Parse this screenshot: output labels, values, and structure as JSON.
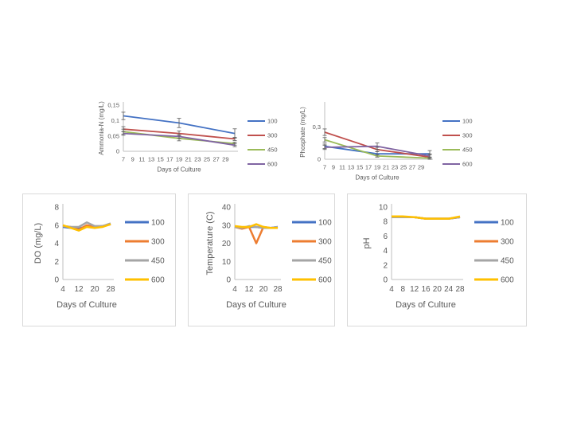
{
  "colors": {
    "100": "#4472C4",
    "300": "#C0504D",
    "450": "#9BBB59",
    "600": "#8064A2"
  },
  "colors_bottom": {
    "100": "#4472C4",
    "300": "#ED7D31",
    "450": "#A5A5A5",
    "600": "#FFC000"
  },
  "chart_data": [
    {
      "type": "line",
      "ylabel": "Ammonia-N (mg/L)",
      "xlabel": "Days of Culture",
      "x_ticks": [
        "7",
        "9",
        "11",
        "13",
        "15",
        "17",
        "19",
        "21",
        "23",
        "25",
        "27",
        "29"
      ],
      "y_ticks": [
        "0",
        "0,05",
        "0,1",
        "0,15"
      ],
      "ylim": [
        0,
        0.15
      ],
      "x": [
        7,
        19,
        31
      ],
      "error_bars": true,
      "legend": "right",
      "series": [
        {
          "name": "100",
          "values": [
            0.115,
            0.092,
            0.058
          ],
          "err": [
            0.012,
            0.015,
            0.015
          ]
        },
        {
          "name": "300",
          "values": [
            0.072,
            0.058,
            0.04
          ],
          "err": [
            0.008,
            0.008,
            0.005
          ]
        },
        {
          "name": "450",
          "values": [
            0.064,
            0.042,
            0.025
          ],
          "err": [
            0.008,
            0.008,
            0.005
          ]
        },
        {
          "name": "600",
          "values": [
            0.058,
            0.048,
            0.02
          ],
          "err": [
            0.006,
            0.006,
            0.005
          ]
        }
      ]
    },
    {
      "type": "line",
      "ylabel": "Phosphate (mg/L)",
      "xlabel": "Days of Culture",
      "x_ticks": [
        "7",
        "9",
        "11",
        "13",
        "15",
        "17",
        "19",
        "21",
        "23",
        "25",
        "27",
        "29"
      ],
      "y_ticks": [
        "0",
        "0,3"
      ],
      "ylim": [
        0,
        0.5
      ],
      "x": [
        7,
        19,
        31
      ],
      "error_bars": true,
      "legend": "right",
      "series": [
        {
          "name": "100",
          "values": [
            0.12,
            0.05,
            0.05
          ],
          "err": [
            0.02,
            0.02,
            0.03
          ]
        },
        {
          "name": "300",
          "values": [
            0.25,
            0.09,
            0.02
          ],
          "err": [
            0.03,
            0.02,
            0.02
          ]
        },
        {
          "name": "450",
          "values": [
            0.18,
            0.03,
            0.01
          ],
          "err": [
            0.02,
            0.01,
            0.01
          ]
        },
        {
          "name": "600",
          "values": [
            0.11,
            0.12,
            0.03
          ],
          "err": [
            0.02,
            0.03,
            0.02
          ]
        }
      ]
    },
    {
      "type": "line",
      "ylabel": "DO (mg/L)",
      "xlabel": "Days of Culture",
      "x_ticks": [
        "4",
        "12",
        "20",
        "28"
      ],
      "y_ticks": [
        "0",
        "2",
        "4",
        "6",
        "8"
      ],
      "ylim": [
        0,
        8
      ],
      "x": [
        4,
        8,
        12,
        16,
        20,
        24,
        28
      ],
      "legend": "right",
      "series": [
        {
          "name": "100",
          "values": [
            5.8,
            5.7,
            5.6,
            5.9,
            5.8,
            5.9,
            6.1
          ]
        },
        {
          "name": "300",
          "values": [
            5.9,
            5.8,
            5.5,
            6.0,
            5.8,
            5.9,
            6.1
          ]
        },
        {
          "name": "450",
          "values": [
            5.9,
            5.8,
            5.8,
            6.3,
            5.9,
            5.9,
            6.2
          ]
        },
        {
          "name": "600",
          "values": [
            6.0,
            5.7,
            5.4,
            5.8,
            5.7,
            5.8,
            6.1
          ]
        }
      ]
    },
    {
      "type": "line",
      "ylabel": "Temperature (C)",
      "xlabel": "Days of Culture",
      "x_ticks": [
        "4",
        "12",
        "20",
        "28"
      ],
      "y_ticks": [
        "0",
        "10",
        "20",
        "30",
        "40"
      ],
      "ylim": [
        0,
        40
      ],
      "x": [
        4,
        8,
        12,
        16,
        20,
        24,
        28
      ],
      "legend": "right",
      "series": [
        {
          "name": "100",
          "values": [
            29,
            28.5,
            29,
            29,
            28.5,
            28.5,
            29
          ]
        },
        {
          "name": "300",
          "values": [
            29,
            28,
            29,
            20,
            29,
            28.5,
            28.5
          ]
        },
        {
          "name": "450",
          "values": [
            29,
            28.5,
            29.5,
            29,
            28.5,
            28.5,
            29
          ]
        },
        {
          "name": "600",
          "values": [
            29.5,
            29,
            29,
            30.5,
            29,
            28.5,
            28.5
          ]
        }
      ]
    },
    {
      "type": "line",
      "ylabel": "pH",
      "xlabel": "Days of Culture",
      "x_ticks": [
        "4",
        "8",
        "12",
        "16",
        "20",
        "24",
        "28"
      ],
      "y_ticks": [
        "0",
        "2",
        "4",
        "6",
        "8",
        "10"
      ],
      "ylim": [
        0,
        10
      ],
      "x": [
        4,
        8,
        12,
        16,
        20,
        24,
        28
      ],
      "legend": "right",
      "series": [
        {
          "name": "100",
          "values": [
            8.6,
            8.6,
            8.6,
            8.4,
            8.4,
            8.4,
            8.6
          ]
        },
        {
          "name": "300",
          "values": [
            8.6,
            8.6,
            8.6,
            8.4,
            8.4,
            8.4,
            8.6
          ]
        },
        {
          "name": "450",
          "values": [
            8.6,
            8.6,
            8.6,
            8.4,
            8.4,
            8.4,
            8.6
          ]
        },
        {
          "name": "600",
          "values": [
            8.7,
            8.7,
            8.6,
            8.4,
            8.4,
            8.4,
            8.7
          ]
        }
      ]
    }
  ]
}
